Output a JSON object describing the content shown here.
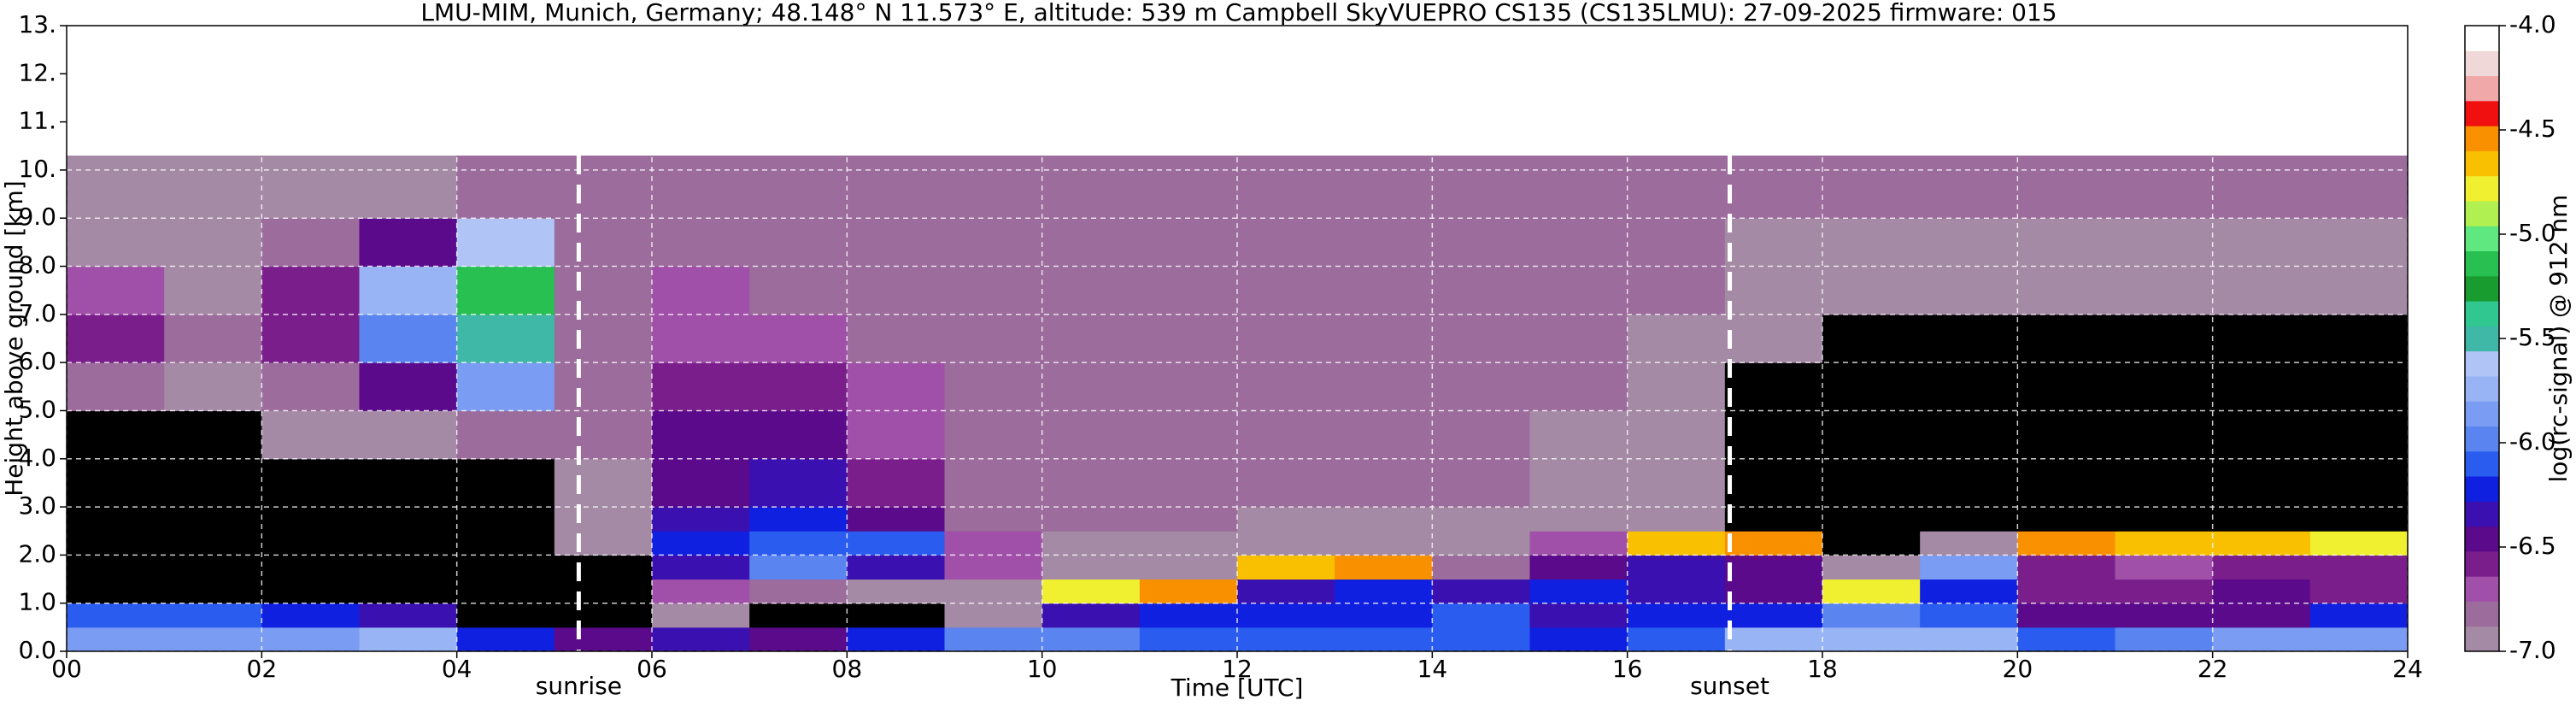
{
  "chart_data": {
    "type": "heatmap",
    "title": "LMU-MIM, Munich, Germany; 48.148° N 11.573° E, altitude: 539 m    Campbell SkyVUEPRO CS135 (CS135LMU): 27-09-2025    firmware: 015",
    "x_label": "Time [UTC]",
    "y_label": "Height above ground [km]",
    "colorbar_label": "log(rc-signal) @ 912 nm",
    "xlim": [
      0,
      24
    ],
    "xticks": [
      {
        "value": 0,
        "label": "00"
      },
      {
        "value": 2,
        "label": "02"
      },
      {
        "value": 4,
        "label": "04"
      },
      {
        "value": 6,
        "label": "06"
      },
      {
        "value": 8,
        "label": "08"
      },
      {
        "value": 10,
        "label": "10"
      },
      {
        "value": 12,
        "label": "12"
      },
      {
        "value": 14,
        "label": "14"
      },
      {
        "value": 16,
        "label": "16"
      },
      {
        "value": 18,
        "label": "18"
      },
      {
        "value": 20,
        "label": "20"
      },
      {
        "value": 22,
        "label": "22"
      },
      {
        "value": 24,
        "label": "24"
      }
    ],
    "ylim": [
      0,
      13
    ],
    "yticks": [
      {
        "value": 0,
        "label": "0.0"
      },
      {
        "value": 1,
        "label": "1.0"
      },
      {
        "value": 2,
        "label": "2.0"
      },
      {
        "value": 3,
        "label": "3.0"
      },
      {
        "value": 4,
        "label": "4.0"
      },
      {
        "value": 5,
        "label": "5.0"
      },
      {
        "value": 6,
        "label": "6.0"
      },
      {
        "value": 7,
        "label": "7.0"
      },
      {
        "value": 8,
        "label": "8.0"
      },
      {
        "value": 9,
        "label": "9.0"
      },
      {
        "value": 10,
        "label": "10."
      },
      {
        "value": 11,
        "label": "11."
      },
      {
        "value": 12,
        "label": "12."
      },
      {
        "value": 13,
        "label": "13."
      }
    ],
    "clim": [
      -7,
      -4
    ],
    "cticks": [
      {
        "value": -4,
        "label": "-4.0"
      },
      {
        "value": -4.5,
        "label": "-4.5"
      },
      {
        "value": -5,
        "label": "-5.0"
      },
      {
        "value": -5.5,
        "label": "-5.5"
      },
      {
        "value": -6,
        "label": "-6.0"
      },
      {
        "value": -6.5,
        "label": "-6.5"
      },
      {
        "value": -7,
        "label": "-7.0"
      }
    ],
    "colors": [
      "#a48aa4",
      "#9c6c9c",
      "#a050a8",
      "#7a1e8c",
      "#5a0a8a",
      "#3a10b0",
      "#1020e0",
      "#2a5cf0",
      "#5a84f0",
      "#7a9cf2",
      "#98b4f4",
      "#b0c4f6",
      "#40b8a8",
      "#30c890",
      "#189c30",
      "#28c050",
      "#60e880",
      "#b0f050",
      "#f0f030",
      "#f8c000",
      "#f89000",
      "#f01010",
      "#f0a8a8",
      "#f0d8d8",
      "#ffffff"
    ],
    "under_color": "#000000",
    "grid": true,
    "x_edges": [
      0,
      1,
      2,
      3,
      4,
      5,
      6,
      7,
      8,
      9,
      10,
      11,
      12,
      13,
      14,
      15,
      16,
      17,
      18,
      19,
      20,
      21,
      22,
      23,
      24
    ],
    "y_edges": [
      0,
      0.5,
      1,
      1.5,
      2,
      2.5,
      3,
      4,
      5,
      6,
      7,
      8,
      9,
      10.3
    ],
    "z": [
      [
        -5.9,
        -5.9,
        -5.9,
        -5.8,
        -6.2,
        -6.4,
        -6.3,
        -6.4,
        -6.2,
        -6.0,
        -6.0,
        -6.1,
        -6.1,
        -6.1,
        -6.1,
        -6.2,
        -6.1,
        -5.8,
        -5.8,
        -5.8,
        -6.1,
        -6.0,
        -5.9,
        -5.9
      ],
      [
        -6.1,
        -6.1,
        -6.2,
        -6.3,
        -7.3,
        -7.3,
        -6.9,
        -7.2,
        -7.2,
        -6.9,
        -6.3,
        -6.2,
        -6.2,
        -6.2,
        -6.1,
        -6.3,
        -6.2,
        -6.2,
        -6.0,
        -6.1,
        -6.4,
        -6.5,
        -6.5,
        -6.2
      ],
      [
        -7.3,
        -7.3,
        -7.3,
        -7.3,
        -7.3,
        -7.2,
        -6.7,
        -6.8,
        -6.9,
        -7.0,
        -4.8,
        -4.6,
        -6.3,
        -6.2,
        -6.3,
        -6.2,
        -6.3,
        -6.4,
        -4.8,
        -6.2,
        -6.6,
        -6.6,
        -6.5,
        -6.6
      ],
      [
        -7.3,
        -7.3,
        -7.3,
        -7.3,
        -7.3,
        -7.1,
        -6.3,
        -6.0,
        -6.3,
        -6.7,
        -6.9,
        -6.9,
        -4.7,
        -4.6,
        -6.8,
        -6.4,
        -6.3,
        -6.5,
        -6.9,
        -5.9,
        -6.6,
        -6.7,
        -6.6,
        -6.6
      ],
      [
        -7.3,
        -7.3,
        -7.3,
        -7.3,
        -7.3,
        -7.0,
        -6.2,
        -6.1,
        -6.1,
        -6.7,
        -6.9,
        -6.9,
        -6.9,
        -6.9,
        -6.9,
        -6.7,
        -4.7,
        -4.6,
        -7.1,
        -7.0,
        -4.6,
        -4.7,
        -4.7,
        -4.8
      ],
      [
        -7.3,
        -7.3,
        -7.2,
        -7.2,
        -7.2,
        -6.9,
        -6.3,
        -6.2,
        -6.5,
        -6.8,
        -6.8,
        -6.8,
        -6.9,
        -6.9,
        -6.9,
        -6.9,
        -6.9,
        -7.1,
        -7.2,
        -7.2,
        -7.2,
        -7.1,
        -7.1,
        -7.1
      ],
      [
        -7.3,
        -7.3,
        -7.2,
        -7.1,
        -7.1,
        -6.9,
        -6.4,
        -6.3,
        -6.6,
        -6.8,
        -6.8,
        -6.8,
        -6.8,
        -6.8,
        -6.8,
        -6.9,
        -6.9,
        -7.2,
        -7.2,
        -7.2,
        -7.2,
        -7.2,
        -7.2,
        -7.2
      ],
      [
        -7.1,
        -7.1,
        -7.0,
        -6.9,
        -6.8,
        -6.8,
        -6.5,
        -6.5,
        -6.7,
        -6.8,
        -6.8,
        -6.8,
        -6.8,
        -6.8,
        -6.8,
        -6.9,
        -6.9,
        -7.2,
        -7.2,
        -7.2,
        -7.2,
        -7.2,
        -7.2,
        -7.2
      ],
      [
        -6.8,
        -6.9,
        -6.8,
        -6.4,
        -5.9,
        -6.8,
        -6.6,
        -6.6,
        -6.7,
        -6.8,
        -6.8,
        -6.8,
        -6.8,
        -6.8,
        -6.8,
        -6.8,
        -6.9,
        -7.1,
        -7.2,
        -7.2,
        -7.2,
        -7.2,
        -7.2,
        -7.2
      ],
      [
        -6.6,
        -6.8,
        -6.6,
        -6.0,
        -5.5,
        -6.8,
        -6.7,
        -6.7,
        -6.8,
        -6.8,
        -6.8,
        -6.8,
        -6.8,
        -6.8,
        -6.8,
        -6.8,
        -6.9,
        -7.0,
        -7.1,
        -7.1,
        -7.1,
        -7.1,
        -7.1,
        -7.1
      ],
      [
        -6.7,
        -6.9,
        -6.6,
        -5.8,
        -5.1,
        -6.8,
        -6.7,
        -6.8,
        -6.8,
        -6.8,
        -6.8,
        -6.8,
        -6.8,
        -6.8,
        -6.8,
        -6.8,
        -6.8,
        -6.9,
        -7.0,
        -7.0,
        -7.0,
        -7.0,
        -7.0,
        -7.0
      ],
      [
        -6.9,
        -6.9,
        -6.8,
        -6.4,
        -5.6,
        -6.8,
        -6.8,
        -6.8,
        -6.8,
        -6.8,
        -6.8,
        -6.8,
        -6.8,
        -6.8,
        -6.8,
        -6.8,
        -6.8,
        -6.9,
        -6.9,
        -6.9,
        -6.9,
        -6.9,
        -6.9,
        -6.9
      ],
      [
        -6.9,
        -6.9,
        -6.9,
        -6.9,
        -6.8,
        -6.8,
        -6.8,
        -6.8,
        -6.8,
        -6.8,
        -6.8,
        -6.8,
        -6.8,
        -6.8,
        -6.8,
        -6.8,
        -6.8,
        -6.8,
        -6.8,
        -6.8,
        -6.8,
        -6.8,
        -6.8,
        -6.8
      ]
    ],
    "annotations": [
      {
        "text": "sunrise",
        "x": 5.25
      },
      {
        "text": "sunset",
        "x": 17.05
      }
    ]
  }
}
